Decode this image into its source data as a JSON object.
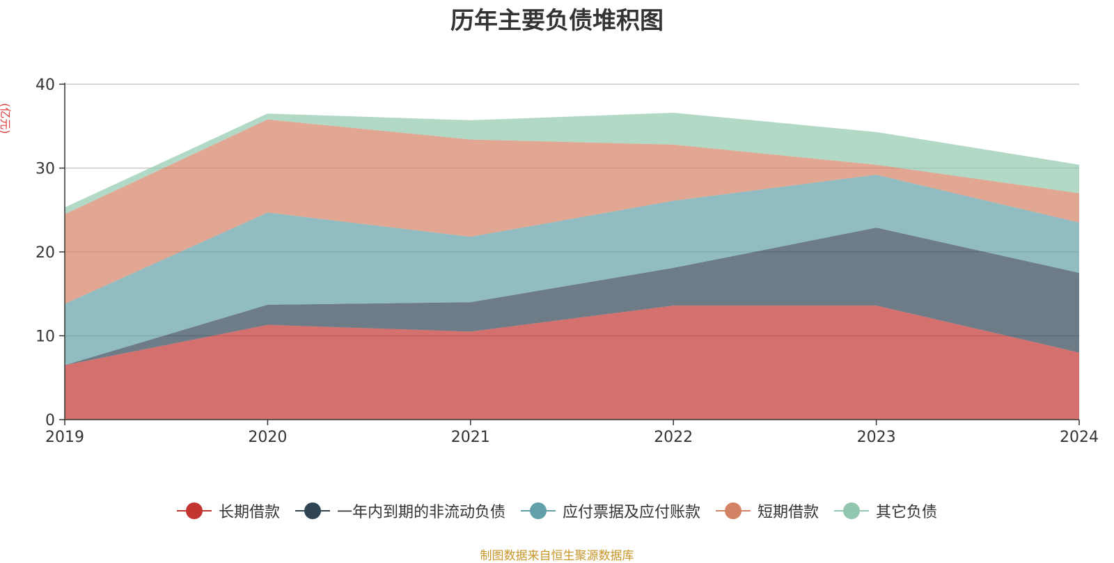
{
  "chart_data": {
    "type": "area",
    "stacked": true,
    "title": "历年主要负债堆积图",
    "unit_label": "(亿元)",
    "x": [
      "2019",
      "2020",
      "2021",
      "2022",
      "2023",
      "2024"
    ],
    "ylim": [
      0,
      40
    ],
    "yticks": [
      "0",
      "10",
      "20",
      "30",
      "40"
    ],
    "grid": true,
    "legend_position": "bottom",
    "series": [
      {
        "name": "长期借款",
        "color": "#c23531",
        "values": [
          6.5,
          11.3,
          10.5,
          13.6,
          13.6,
          8.0
        ]
      },
      {
        "name": "一年内到期的非流动负债",
        "color": "#2f4554",
        "values": [
          0.0,
          2.4,
          3.5,
          4.5,
          9.3,
          9.5
        ]
      },
      {
        "name": "应付票据及应付账款",
        "color": "#61a0a8",
        "values": [
          7.3,
          11.0,
          7.8,
          8.0,
          6.3,
          6.0
        ]
      },
      {
        "name": "短期借款",
        "color": "#d48265",
        "values": [
          10.7,
          11.1,
          11.6,
          6.7,
          1.2,
          3.5
        ]
      },
      {
        "name": "其它负债",
        "color": "#91c7ae",
        "values": [
          0.8,
          0.7,
          2.3,
          3.8,
          3.9,
          3.4
        ]
      }
    ],
    "source": "制图数据来自恒生聚源数据库"
  }
}
